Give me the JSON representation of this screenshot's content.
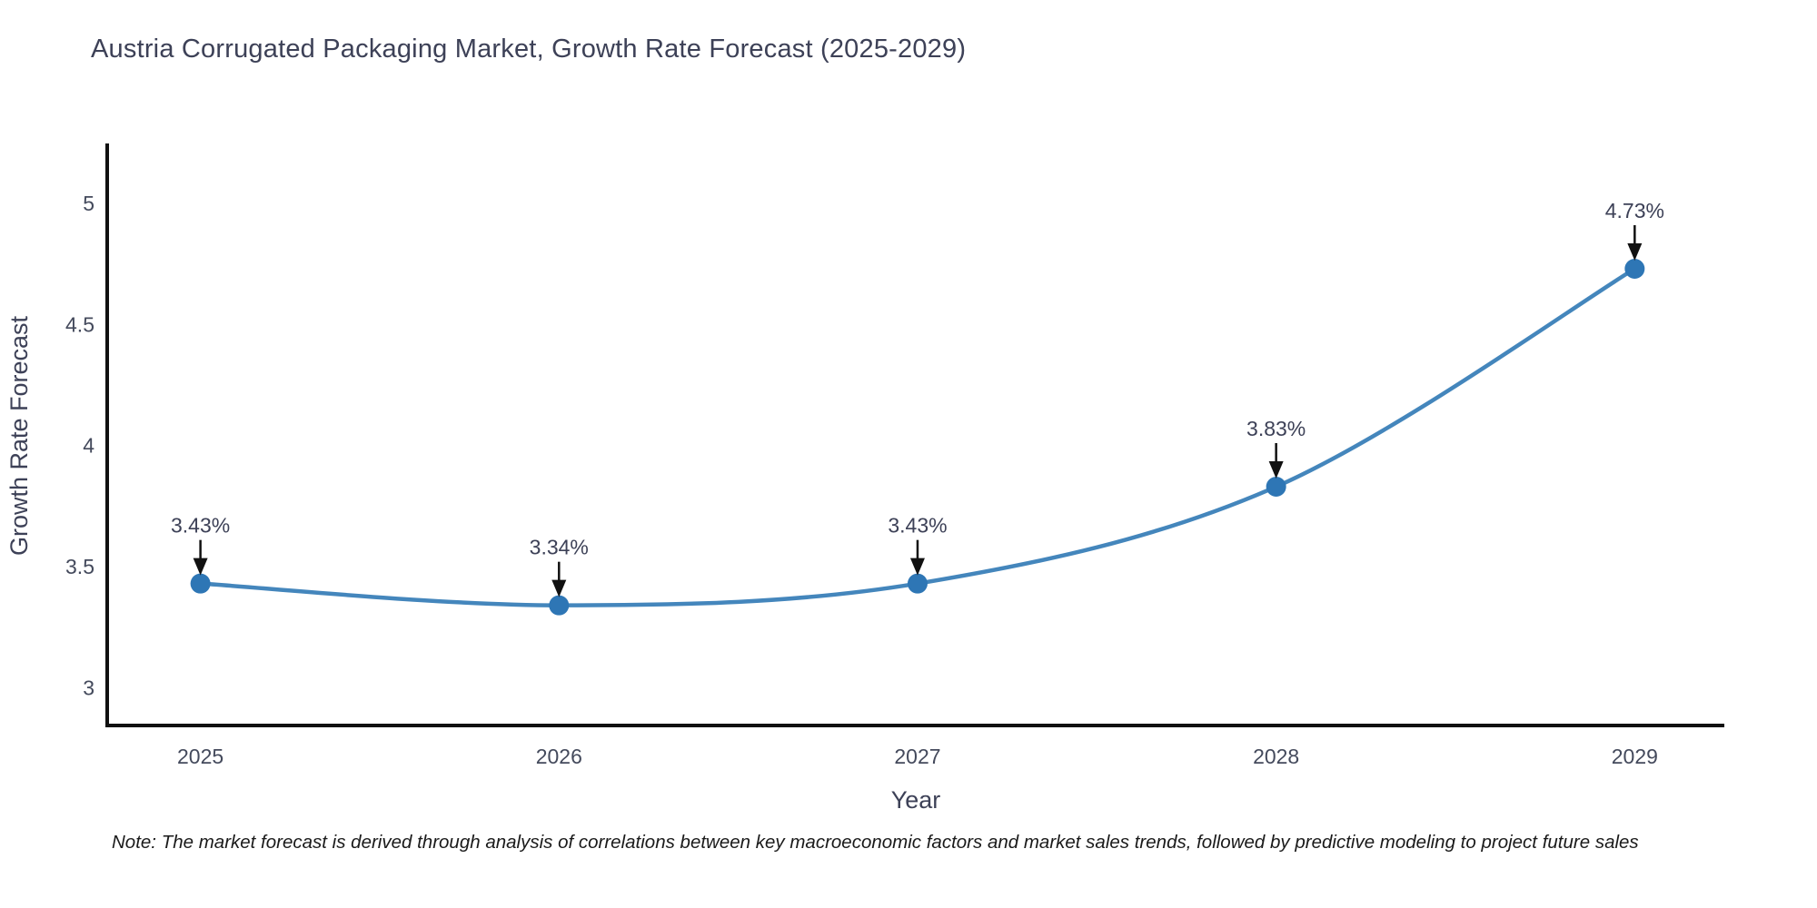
{
  "title": "Austria Corrugated Packaging Market, Growth Rate Forecast (2025-2029)",
  "note": "Note: The market forecast is derived through analysis of correlations between key macroeconomic factors and market sales trends, followed by predictive modeling to project future sales",
  "chart_data": {
    "type": "line",
    "title": "Austria Corrugated Packaging Market, Growth Rate Forecast (2025-2029)",
    "x": [
      2025,
      2026,
      2027,
      2028,
      2029
    ],
    "y": [
      3.43,
      3.34,
      3.43,
      3.83,
      4.73
    ],
    "point_labels": [
      "3.43%",
      "3.34%",
      "3.43%",
      "3.83%",
      "4.73%"
    ],
    "xlabel": "Year",
    "ylabel": "Growth Rate Forecast",
    "xticks": [
      2025,
      2026,
      2027,
      2028,
      2029
    ],
    "yticks": [
      3,
      3.5,
      4,
      4.5,
      5
    ],
    "xlim": [
      2024.74,
      2029.25
    ],
    "ylim": [
      2.84,
      5.24
    ],
    "line_shape": "spline",
    "grid": false,
    "legend": false,
    "colors": {
      "line": "#4486bc",
      "marker": "#2e76b5",
      "axis": "#111111",
      "title_text": "#3d4157",
      "tick_text": "#444a5c",
      "annotation_text": "#3d4157",
      "arrow": "#111111",
      "note_text": "#1a1a1a",
      "background": "#ffffff"
    }
  }
}
